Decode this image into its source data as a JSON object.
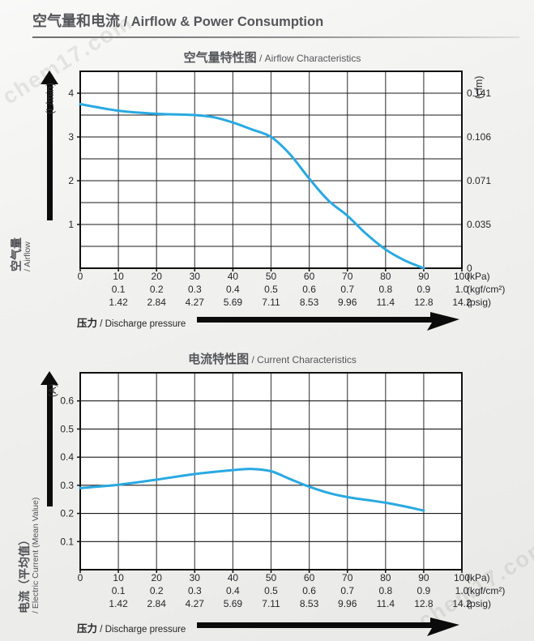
{
  "header": {
    "title_zh": "空气量和电流",
    "title_en": " / Airflow & Power Consumption"
  },
  "watermark": "chem17.com",
  "chart_data": [
    {
      "type": "line",
      "title_zh": "空气量特性图",
      "title_en": " / Airflow Characteristics",
      "line_color": "#29a9e1",
      "points": [
        [
          0,
          3.75
        ],
        [
          10,
          3.6
        ],
        [
          20,
          3.53
        ],
        [
          30,
          3.5
        ],
        [
          35,
          3.45
        ],
        [
          40,
          3.33
        ],
        [
          45,
          3.17
        ],
        [
          50,
          3.0
        ],
        [
          55,
          2.6
        ],
        [
          60,
          2.05
        ],
        [
          65,
          1.55
        ],
        [
          70,
          1.2
        ],
        [
          75,
          0.78
        ],
        [
          80,
          0.43
        ],
        [
          85,
          0.18
        ],
        [
          90,
          0
        ]
      ],
      "xlim": [
        0,
        100
      ],
      "ylim": [
        0,
        4.5
      ],
      "x_grid_step": 10,
      "y_grid_step": 0.5,
      "grid": true,
      "legend": "none",
      "y_ticks_left": {
        "values": [
          4,
          3,
          2,
          1
        ],
        "labels": [
          "4",
          "3",
          "2",
          "1"
        ]
      },
      "y_ticks_right": {
        "values": [
          4,
          3,
          2,
          1,
          0
        ],
        "labels": [
          "0.141",
          "0.106",
          "0.071",
          "0.035",
          "0"
        ]
      },
      "y_unit_left": "(L/min)",
      "y_unit_right": "(cfm)",
      "y_axis_name_zh": "空气量",
      "y_axis_name_en": "/ Airflow",
      "x_axis_name_zh": "压力",
      "x_axis_name_en": " / Discharge pressure",
      "x_rows": [
        {
          "positions": [
            0,
            10,
            20,
            30,
            40,
            50,
            60,
            70,
            80,
            90,
            100
          ],
          "labels": [
            "0",
            "10",
            "20",
            "30",
            "40",
            "50",
            "60",
            "70",
            "80",
            "90",
            "100"
          ],
          "unit": "(kPa)"
        },
        {
          "positions": [
            10,
            20,
            30,
            40,
            50,
            60,
            70,
            80,
            90,
            100
          ],
          "labels": [
            "0.1",
            "0.2",
            "0.3",
            "0.4",
            "0.5",
            "0.6",
            "0.7",
            "0.8",
            "0.9",
            "1.0"
          ],
          "unit": "(kgf/cm²)"
        },
        {
          "positions": [
            10,
            20,
            30,
            40,
            50,
            60,
            70,
            80,
            90,
            100
          ],
          "labels": [
            "1.42",
            "2.84",
            "4.27",
            "5.69",
            "7.11",
            "8.53",
            "9.96",
            "11.4",
            "12.8",
            "14.2"
          ],
          "unit": "(psig)"
        }
      ]
    },
    {
      "type": "line",
      "title_zh": "电流特性图",
      "title_en": " / Current Characteristics",
      "line_color": "#29a9e1",
      "points": [
        [
          0,
          0.29
        ],
        [
          10,
          0.302
        ],
        [
          20,
          0.32
        ],
        [
          30,
          0.34
        ],
        [
          40,
          0.354
        ],
        [
          45,
          0.358
        ],
        [
          50,
          0.35
        ],
        [
          55,
          0.322
        ],
        [
          60,
          0.295
        ],
        [
          65,
          0.273
        ],
        [
          70,
          0.258
        ],
        [
          75,
          0.248
        ],
        [
          80,
          0.238
        ],
        [
          85,
          0.225
        ],
        [
          90,
          0.21
        ]
      ],
      "xlim": [
        0,
        100
      ],
      "ylim": [
        0,
        0.7
      ],
      "x_grid_step": 10,
      "y_grid_step": 0.1,
      "grid": true,
      "legend": "none",
      "y_ticks_left": {
        "values": [
          0.6,
          0.5,
          0.4,
          0.3,
          0.2,
          0.1
        ],
        "labels": [
          "0.6",
          "0.5",
          "0.4",
          "0.3",
          "0.2",
          "0.1"
        ]
      },
      "y_ticks_right": null,
      "y_unit_left": "(A)",
      "y_unit_right": null,
      "y_axis_name_zh": "电流（平均值）",
      "y_axis_name_en": "/ Electric Current (Mean Value)",
      "x_axis_name_zh": "压力",
      "x_axis_name_en": " / Discharge pressure",
      "x_rows": [
        {
          "positions": [
            0,
            10,
            20,
            30,
            40,
            50,
            60,
            70,
            80,
            90,
            100
          ],
          "labels": [
            "0",
            "10",
            "20",
            "30",
            "40",
            "50",
            "60",
            "70",
            "80",
            "90",
            "100"
          ],
          "unit": "(kPa)"
        },
        {
          "positions": [
            10,
            20,
            30,
            40,
            50,
            60,
            70,
            80,
            90,
            100
          ],
          "labels": [
            "0.1",
            "0.2",
            "0.3",
            "0.4",
            "0.5",
            "0.6",
            "0.7",
            "0.8",
            "0.9",
            "1.0"
          ],
          "unit": "(kgf/cm²)"
        },
        {
          "positions": [
            10,
            20,
            30,
            40,
            50,
            60,
            70,
            80,
            90,
            100
          ],
          "labels": [
            "1.42",
            "2.84",
            "4.27",
            "5.69",
            "7.11",
            "8.53",
            "9.96",
            "11.4",
            "12.8",
            "14.2"
          ],
          "unit": "(psig)"
        }
      ]
    }
  ]
}
